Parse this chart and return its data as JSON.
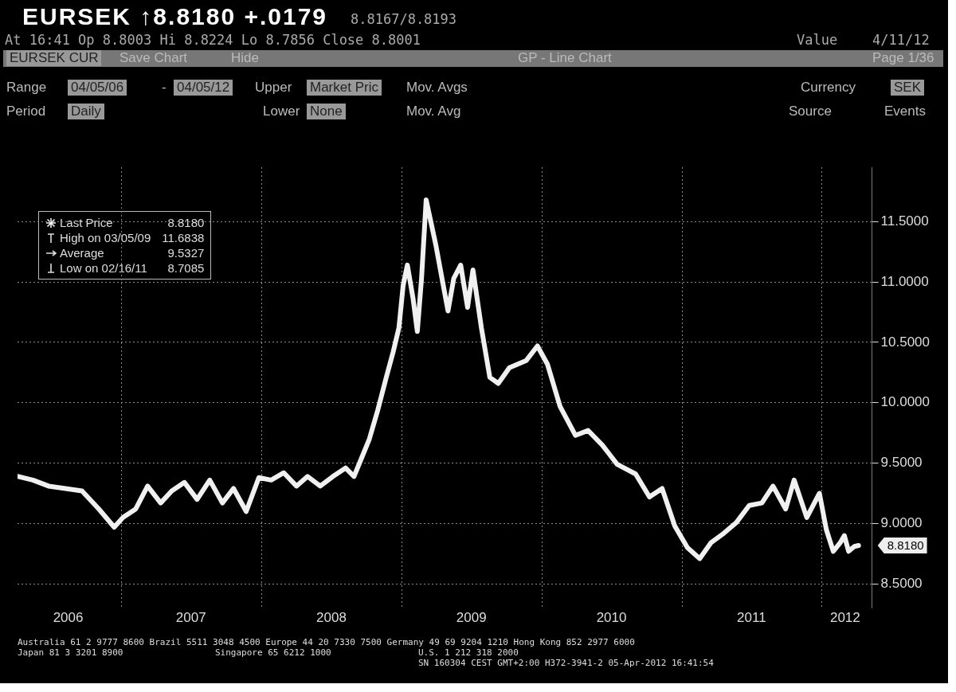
{
  "chart_data": {
    "type": "line",
    "title": "EURSEK ↑8.8180 +.0179",
    "subtitle": "At 16:41 Op 8.8003 Hi 8.8224 Lo 8.7856 Close 8.8001",
    "x": [
      "2006-04-05",
      "2006-05-15",
      "2006-06-25",
      "2006-08-08",
      "2006-09-20",
      "2006-11-03",
      "2006-12-13",
      "2007-01-05",
      "2007-02-07",
      "2007-03-10",
      "2007-04-13",
      "2007-05-12",
      "2007-06-14",
      "2007-07-17",
      "2007-08-19",
      "2007-09-21",
      "2007-10-20",
      "2007-11-22",
      "2007-12-25",
      "2008-01-26",
      "2008-02-28",
      "2008-04-01",
      "2008-04-30",
      "2008-06-02",
      "2008-07-05",
      "2008-08-07",
      "2008-08-29",
      "2008-09-20",
      "2008-10-08",
      "2008-10-30",
      "2008-11-21",
      "2008-12-09",
      "2008-12-24",
      "2009-01-04",
      "2009-01-15",
      "2009-01-30",
      "2009-02-10",
      "2009-02-21",
      "2009-03-05",
      "2009-03-30",
      "2009-04-17",
      "2009-05-01",
      "2009-05-16",
      "2009-06-03",
      "2009-06-21",
      "2009-07-05",
      "2009-07-27",
      "2009-08-18",
      "2009-09-09",
      "2009-10-08",
      "2009-11-21",
      "2009-12-20",
      "2010-01-15",
      "2010-02-17",
      "2010-03-29",
      "2010-05-01",
      "2010-06-07",
      "2010-07-16",
      "2010-09-02",
      "2010-10-08",
      "2010-11-10",
      "2010-12-13",
      "2011-01-15",
      "2011-02-16",
      "2011-03-17",
      "2011-04-20",
      "2011-05-23",
      "2011-06-25",
      "2011-07-28",
      "2011-08-26",
      "2011-09-28",
      "2011-10-20",
      "2011-11-22",
      "2011-12-25",
      "2012-01-12",
      "2012-01-30",
      "2012-02-17",
      "2012-02-28",
      "2012-03-10",
      "2012-03-25",
      "2012-04-05"
    ],
    "series": [
      {
        "name": "Last Price",
        "color": "#f0f0f0",
        "values": [
          9.39,
          9.36,
          9.31,
          9.29,
          9.27,
          9.12,
          8.97,
          9.05,
          9.12,
          9.31,
          9.17,
          9.27,
          9.34,
          9.2,
          9.36,
          9.17,
          9.29,
          9.1,
          9.38,
          9.36,
          9.42,
          9.31,
          9.39,
          9.31,
          9.39,
          9.46,
          9.39,
          9.56,
          9.7,
          9.94,
          10.21,
          10.42,
          10.62,
          10.97,
          11.14,
          10.86,
          10.59,
          11.03,
          11.68,
          11.31,
          11.0,
          10.76,
          11.03,
          11.14,
          10.79,
          11.1,
          10.62,
          10.21,
          10.16,
          10.29,
          10.35,
          10.47,
          10.32,
          9.97,
          9.73,
          9.77,
          9.65,
          9.49,
          9.41,
          9.22,
          9.29,
          8.98,
          8.8,
          8.71,
          8.84,
          8.92,
          9.01,
          9.15,
          9.17,
          9.31,
          9.12,
          9.36,
          9.05,
          9.25,
          8.95,
          8.77,
          8.84,
          8.9,
          8.77,
          8.81,
          8.818
        ]
      }
    ],
    "xlim": [
      "2006-04-05",
      "2012-05-10"
    ],
    "xticks": [
      {
        "value": "2006-08-15",
        "label": "2006"
      },
      {
        "value": "2007-01-01",
        "label": null
      },
      {
        "value": "2007-07-01",
        "label": "2007"
      },
      {
        "value": "2008-01-01",
        "label": null
      },
      {
        "value": "2008-07-01",
        "label": "2008"
      },
      {
        "value": "2009-01-01",
        "label": null
      },
      {
        "value": "2009-07-01",
        "label": "2009"
      },
      {
        "value": "2010-01-01",
        "label": null
      },
      {
        "value": "2010-07-01",
        "label": "2010"
      },
      {
        "value": "2011-01-01",
        "label": null
      },
      {
        "value": "2011-07-01",
        "label": "2011"
      },
      {
        "value": "2012-01-01",
        "label": null
      },
      {
        "value": "2012-03-01",
        "label": "2012"
      }
    ],
    "ylim": [
      8.3,
      11.95
    ],
    "yticks": [
      {
        "value": 8.5,
        "label": "8.5000"
      },
      {
        "value": 9,
        "label": "9.0000"
      },
      {
        "value": 9.5,
        "label": "9.5000"
      },
      {
        "value": 10,
        "label": "10.0000"
      },
      {
        "value": 10.5,
        "label": "10.5000"
      },
      {
        "value": 11,
        "label": "11.0000"
      },
      {
        "value": 11.5,
        "label": "11.5000"
      }
    ],
    "grid": true,
    "legend": "top left",
    "marker": "none",
    "line_style": "solid",
    "annotations": [
      "8.8167/8.8193",
      "Value",
      "4/11/12",
      "EURSEK CUR",
      "Save Chart",
      "Hide",
      "GP - Line Chart",
      "Page 1/36",
      "Range",
      "04/05/06",
      "-",
      "04/05/12",
      "Upper",
      "Market Pric",
      "Mov. Avgs",
      "Currency",
      "SEK",
      "Period",
      "Daily",
      "Lower",
      "None",
      "Mov. Avg",
      "Source",
      "Events",
      "8.8180",
      "High on 03/05/09",
      "11.6838",
      "Average",
      "9.5327",
      "Low on 02/16/11",
      "8.7085",
      {
        "text": "8.8180",
        "x": "2012-04-05",
        "y": 8.818
      },
      "Australia 61 2 9777 8600 Brazil 5511 3048 4500 Europe 44 20 7330 7500 Germany 49 69 9204 1210 Hong Kong 852 2977 6000",
      "Japan 81 3 3201 8900",
      "Singapore 65 6212 1000",
      "U.S. 1 212 318 2000",
      "SN 160304 CEST GMT+2:00 H372-3941-2 05-Apr-2012 16:41:54"
    ]
  }
}
